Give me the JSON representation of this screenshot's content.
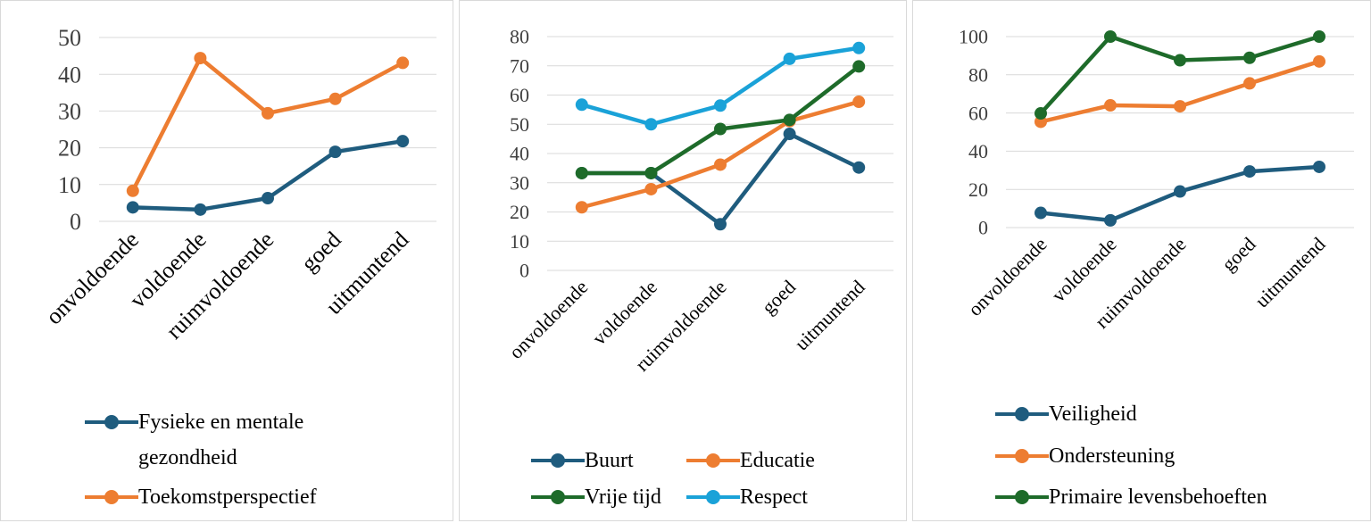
{
  "chart_data": [
    {
      "type": "line",
      "categories": [
        "onvoldoende",
        "voldoende",
        "ruimvoldoende",
        "goed",
        "uitmuntend"
      ],
      "ylim": [
        0,
        50
      ],
      "yticks": [
        "0",
        "10",
        "20",
        "30",
        "40",
        "50"
      ],
      "grid": true,
      "legend_position": "bottom",
      "series": [
        {
          "name": "Fysieke en mentale gezondheid",
          "color": "#1f5c7e",
          "values": [
            3.8,
            3.2,
            6.3,
            18.9,
            21.8
          ]
        },
        {
          "name": "Toekomstperspectief",
          "color": "#ed7d31",
          "values": [
            8.3,
            44.4,
            29.4,
            33.3,
            43.1
          ]
        }
      ]
    },
    {
      "type": "line",
      "categories": [
        "onvoldoende",
        "voldoende",
        "ruimvoldoende",
        "goed",
        "uitmuntend"
      ],
      "ylim": [
        0,
        80
      ],
      "yticks": [
        "0",
        "10",
        "20",
        "30",
        "40",
        "50",
        "60",
        "70",
        "80"
      ],
      "grid": true,
      "legend_position": "bottom",
      "series": [
        {
          "name": "Buurt",
          "color": "#1f5c7e",
          "values": [
            33.3,
            33.3,
            15.8,
            46.7,
            35.2
          ]
        },
        {
          "name": "Educatie",
          "color": "#ed7d31",
          "values": [
            21.6,
            27.8,
            36.2,
            51.1,
            57.7
          ]
        },
        {
          "name": "Vrije tijd",
          "color": "#1e6b2a",
          "values": [
            33.3,
            33.3,
            48.4,
            51.5,
            69.8
          ]
        },
        {
          "name": "Respect",
          "color": "#1aa2d8",
          "values": [
            56.7,
            50.0,
            56.4,
            72.4,
            76.1
          ]
        }
      ]
    },
    {
      "type": "line",
      "categories": [
        "onvoldoende",
        "voldoende",
        "ruimvoldoende",
        "goed",
        "uitmuntend"
      ],
      "ylim": [
        0,
        100
      ],
      "yticks": [
        "0",
        "20",
        "40",
        "60",
        "80",
        "100"
      ],
      "grid": true,
      "legend_position": "bottom",
      "series": [
        {
          "name": "Veiligheid",
          "color": "#1f5c7e",
          "values": [
            7.7,
            3.8,
            18.9,
            29.4,
            31.8
          ]
        },
        {
          "name": "Ondersteuning",
          "color": "#ed7d31",
          "values": [
            55.4,
            64.0,
            63.5,
            75.5,
            87.0
          ]
        },
        {
          "name": "Primaire levensbehoeften",
          "color": "#1e6b2a",
          "values": [
            59.8,
            100.0,
            87.6,
            88.9,
            100.0
          ]
        }
      ]
    }
  ]
}
